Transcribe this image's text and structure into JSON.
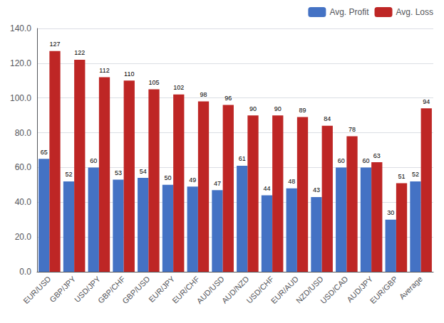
{
  "chart_data": {
    "type": "bar",
    "categories": [
      "EUR/USD",
      "GBP/JPY",
      "USD/JPY",
      "GBP/CHF",
      "GBP/USD",
      "EUR/JPY",
      "EUR/CHF",
      "AUD/USD",
      "AUD/NZD",
      "USD/CHF",
      "EUR/AUD",
      "NZD/USD",
      "USD/CAD",
      "AUD/JPY",
      "EUR/GBP",
      "Average"
    ],
    "series": [
      {
        "name": "Avg. Profit",
        "color": "#4472C4",
        "values": [
          65,
          52,
          60,
          53,
          54,
          50,
          49,
          47,
          61,
          44,
          48,
          43,
          60,
          60,
          30,
          52
        ]
      },
      {
        "name": "Avg. Loss",
        "color": "#BE2625",
        "values": [
          127,
          122,
          112,
          110,
          105,
          102,
          98,
          96,
          90,
          90,
          89,
          84,
          78,
          63,
          51,
          94
        ]
      }
    ],
    "ylim": [
      0,
      140
    ],
    "yticks": [
      {
        "value": 0,
        "label": "0.0"
      },
      {
        "value": 20,
        "label": "20.0"
      },
      {
        "value": 40,
        "label": "40.0"
      },
      {
        "value": 60,
        "label": "60.0"
      },
      {
        "value": 80,
        "label": "80.0"
      },
      {
        "value": 100,
        "label": "100.0"
      },
      {
        "value": 120,
        "label": "120.0"
      },
      {
        "value": 140,
        "label": "140.0"
      }
    ],
    "grid": true,
    "legend": "upper right",
    "data_labels": true
  }
}
